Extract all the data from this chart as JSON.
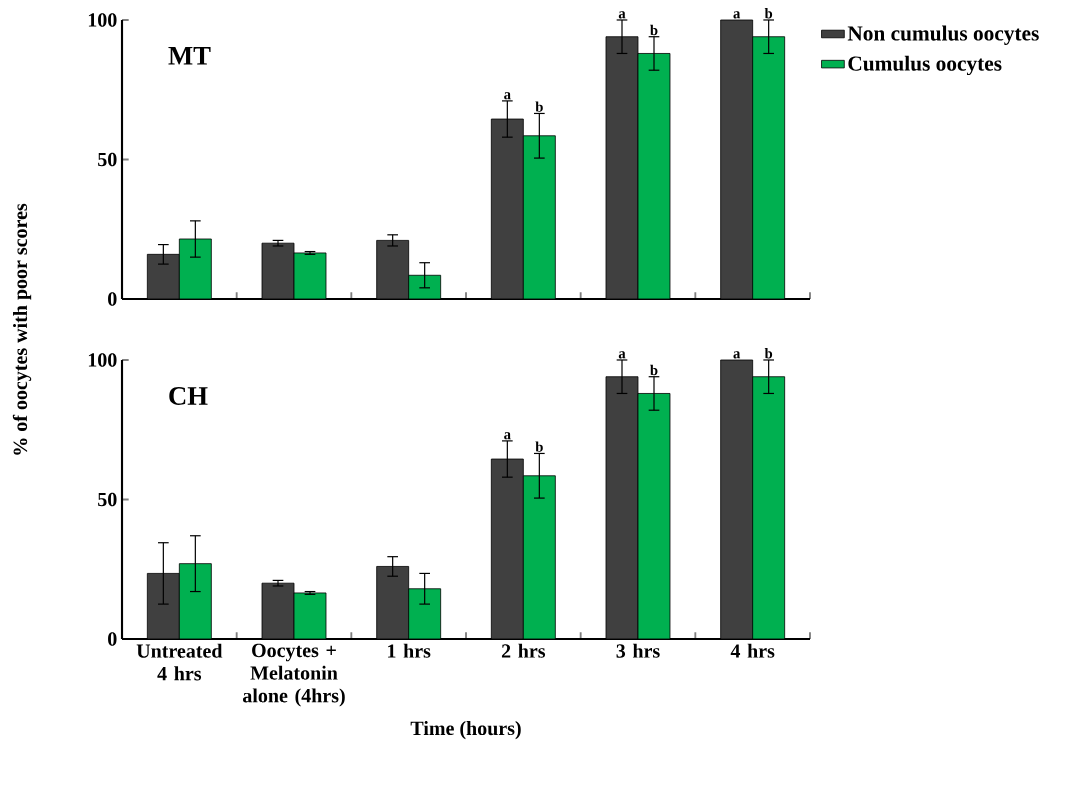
{
  "chart_data": [
    {
      "type": "bar",
      "title": "MT",
      "categories": [
        "Untreated 4 hrs",
        "Oocytes + Melatonin alone (4hrs)",
        "1 hrs",
        "2 hrs",
        "3 hrs",
        "4 hrs"
      ],
      "series": [
        {
          "name": "Non cumulus oocytes",
          "color": "#404040",
          "values": [
            16,
            20,
            21,
            64.5,
            94,
            100
          ],
          "errors": [
            3.5,
            1,
            2,
            6.5,
            6,
            null
          ]
        },
        {
          "name": "Cumulus oocytes",
          "color": "#00b050",
          "values": [
            21.5,
            16.5,
            8.5,
            58.5,
            88,
            94
          ],
          "errors": [
            6.5,
            0.5,
            4.5,
            8,
            6,
            6
          ]
        }
      ],
      "ylim": [
        0,
        100
      ],
      "yticks": [
        0,
        50,
        100
      ],
      "tick_labels": "y",
      "legend": "top right",
      "annotations": [
        {
          "text": "a",
          "x": "2 hrs",
          "y": 64.5
        },
        {
          "text": "b",
          "x": "2 hrs",
          "y": 58.5
        },
        {
          "text": "a",
          "x": "3 hrs",
          "y": 94
        },
        {
          "text": "b",
          "x": "3 hrs",
          "y": 88
        },
        {
          "text": "a",
          "x": "4 hrs",
          "y": 100
        },
        {
          "text": "b",
          "x": "4 hrs",
          "y": 94
        }
      ]
    },
    {
      "type": "bar",
      "title": "CH",
      "categories": [
        "Untreated 4 hrs",
        "Oocytes + Melatonin alone (4hrs)",
        "1 hrs",
        "2 hrs",
        "3 hrs",
        "4 hrs"
      ],
      "series": [
        {
          "color": "#404040",
          "values": [
            23.5,
            20,
            26,
            64.5,
            94,
            100
          ],
          "errors": [
            11,
            1,
            3.5,
            6.5,
            6,
            null
          ]
        },
        {
          "color": "#00b050",
          "values": [
            27,
            16.5,
            18,
            58.5,
            88,
            94
          ],
          "errors": [
            10,
            0.5,
            5.5,
            8,
            6,
            6
          ]
        }
      ],
      "ylim": [
        0,
        100
      ],
      "yticks": [
        0,
        50,
        100
      ],
      "xlabel": "Time (hours)",
      "ylabel": "% of oocytes with poor scores",
      "annotations": [
        {
          "text": "a",
          "x": "2 hrs",
          "y": 64.5
        },
        {
          "text": "b",
          "x": "2 hrs",
          "y": 58.5
        },
        {
          "text": "a",
          "x": "3 hrs",
          "y": 94
        },
        {
          "text": "b",
          "x": "3 hrs",
          "y": 88
        },
        {
          "text": "a",
          "x": "4 hrs",
          "y": 100
        },
        {
          "text": "b",
          "x": "4 hrs",
          "y": 94
        }
      ]
    }
  ]
}
